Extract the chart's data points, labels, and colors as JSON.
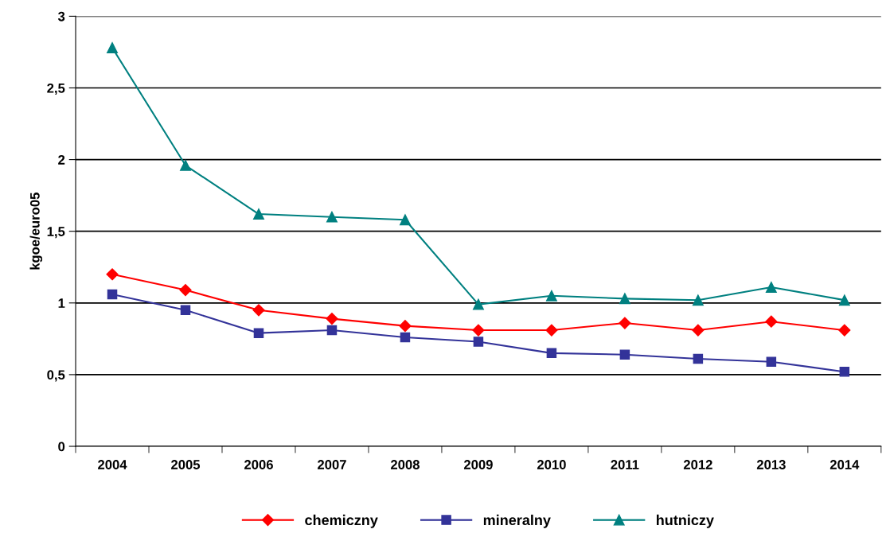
{
  "chart_data": {
    "type": "line",
    "ylabel": "kgoe/euro05",
    "categories": [
      "2004",
      "2005",
      "2006",
      "2007",
      "2008",
      "2009",
      "2010",
      "2011",
      "2012",
      "2013",
      "2014"
    ],
    "series": [
      {
        "name": "chemiczny",
        "color": "#ff0000",
        "marker": "diamond",
        "values": [
          1.2,
          1.09,
          0.95,
          0.89,
          0.84,
          0.81,
          0.81,
          0.86,
          0.81,
          0.87,
          0.81
        ]
      },
      {
        "name": "mineralny",
        "color": "#333399",
        "marker": "square",
        "values": [
          1.06,
          0.95,
          0.79,
          0.81,
          0.76,
          0.73,
          0.65,
          0.64,
          0.61,
          0.59,
          0.52
        ]
      },
      {
        "name": "hutniczy",
        "color": "#008080",
        "marker": "triangle",
        "values": [
          2.78,
          1.96,
          1.62,
          1.6,
          1.58,
          0.99,
          1.05,
          1.03,
          1.02,
          1.11,
          1.02
        ]
      }
    ],
    "ylim": [
      0,
      3
    ],
    "yticks": [
      0,
      {
        "value": 0.5,
        "label": "0,5"
      },
      1,
      {
        "value": 1.5,
        "label": "1,5"
      },
      2,
      {
        "value": 2.5,
        "label": "2,5"
      },
      3
    ],
    "grid": "y",
    "legend": "bottom"
  }
}
